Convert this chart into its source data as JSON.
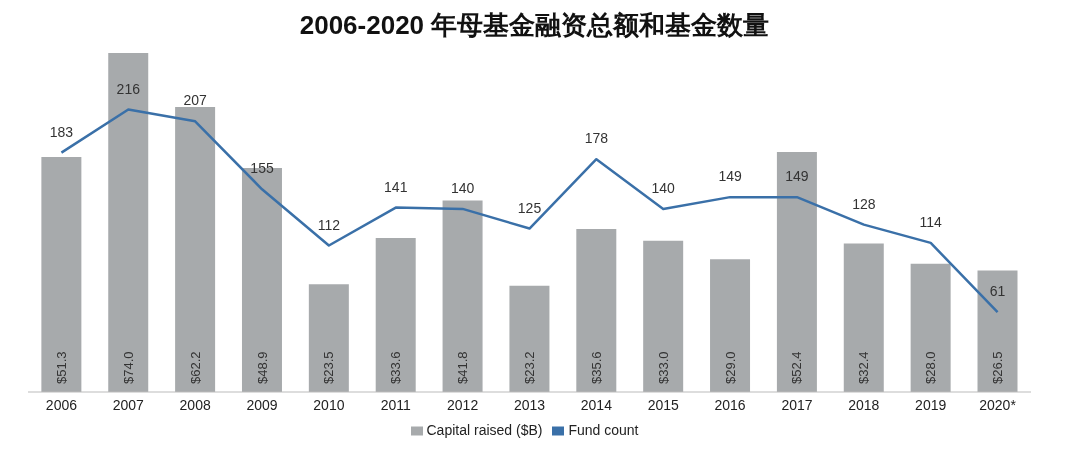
{
  "chart_data": {
    "type": "bar",
    "title": "2006-2020 年母基金融资总额和基金数量",
    "categories": [
      "2006",
      "2007",
      "2008",
      "2009",
      "2010",
      "2011",
      "2012",
      "2013",
      "2014",
      "2015",
      "2016",
      "2017",
      "2018",
      "2019",
      "2020*"
    ],
    "series": [
      {
        "name": "Capital raised ($B)",
        "color": "#a7aaac",
        "values": [
          51.3,
          74.0,
          62.2,
          48.9,
          23.5,
          33.6,
          41.8,
          23.2,
          35.6,
          33.0,
          29.0,
          52.4,
          32.4,
          28.0,
          26.5
        ],
        "value_labels": [
          "$51.3",
          "$74.0",
          "$62.2",
          "$48.9",
          "$23.5",
          "$33.6",
          "$41.8",
          "$23.2",
          "$35.6",
          "$33.0",
          "$29.0",
          "$52.4",
          "$32.4",
          "$28.0",
          "$26.5"
        ]
      },
      {
        "name": "Fund count",
        "type": "line",
        "axis": "y2",
        "color": "#3a70a8",
        "values": [
          183,
          216,
          207,
          155,
          112,
          141,
          140,
          125,
          178,
          140,
          149,
          149,
          128,
          114,
          61
        ],
        "value_labels": [
          "183",
          "216",
          "207",
          "155",
          "112",
          "141",
          "140",
          "125",
          "178",
          "140",
          "149",
          "149",
          "128",
          "114",
          "61"
        ]
      }
    ],
    "tick_labels": "x",
    "legend": "bottom",
    "grid": false,
    "marker": "none"
  }
}
